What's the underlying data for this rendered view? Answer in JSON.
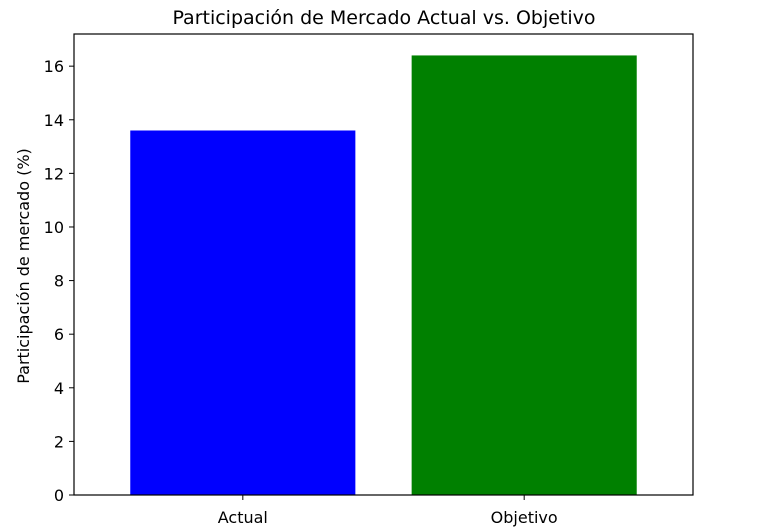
{
  "chart_data": {
    "type": "bar",
    "title": "Participación de Mercado Actual vs. Objetivo",
    "xlabel": "",
    "ylabel": "Participación de mercado (%)",
    "categories": [
      "Actual",
      "Objetivo"
    ],
    "values": [
      13.6,
      16.4
    ],
    "colors": [
      "#0000ff",
      "#008000"
    ],
    "ylim": [
      0,
      17.2
    ],
    "yticks": [
      0,
      2,
      4,
      6,
      8,
      10,
      12,
      14,
      16
    ],
    "grid": false,
    "legend": "none"
  }
}
